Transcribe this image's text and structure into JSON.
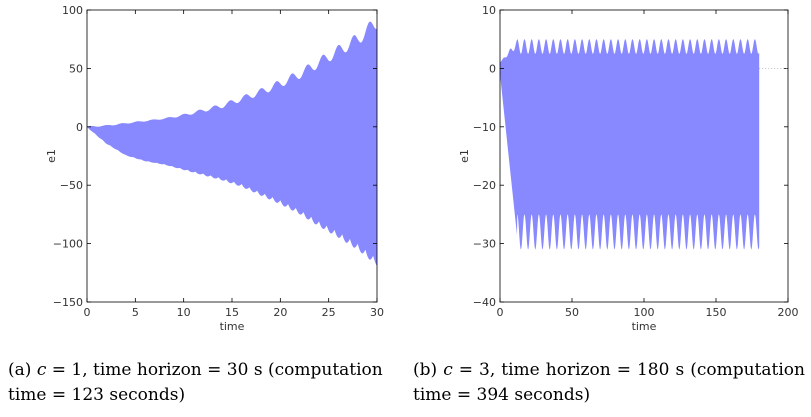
{
  "captions": {
    "a": {
      "prefix": "(a) ",
      "var": "c",
      "rest": " = 1, time horizon = 30 s (computation time = 123 seconds)"
    },
    "b": {
      "prefix": "(b) ",
      "var": "c",
      "rest": " = 3, time horizon = 180 s (computation time = 394 seconds)"
    }
  },
  "chart_data": [
    {
      "type": "area",
      "xlabel": "time",
      "ylabel": "e1",
      "xlim": [
        0,
        30
      ],
      "ylim": [
        -150,
        100
      ],
      "xticks": [
        0,
        5,
        10,
        15,
        20,
        25,
        30
      ],
      "yticks": [
        -150,
        -100,
        -50,
        0,
        50,
        100
      ],
      "grid": false,
      "fill_color": "#8888ff",
      "series": [
        {
          "x": [
            0,
            2,
            4,
            6,
            8,
            10,
            12,
            14,
            16,
            18,
            20,
            22,
            24,
            26,
            28,
            30
          ],
          "upper": [
            0,
            1,
            3,
            5,
            7,
            10,
            14,
            18,
            24,
            30,
            37,
            45,
            55,
            65,
            75,
            90
          ],
          "lower": [
            0,
            -14,
            -24,
            -29,
            -32,
            -36,
            -40,
            -44,
            -49,
            -56,
            -63,
            -71,
            -81,
            -90,
            -100,
            -113
          ]
        }
      ]
    },
    {
      "type": "area",
      "xlabel": "time",
      "ylabel": "e1",
      "xlim": [
        0,
        200
      ],
      "ylim": [
        -40,
        10
      ],
      "xticks": [
        0,
        50,
        100,
        150,
        200
      ],
      "yticks": [
        -40,
        -30,
        -20,
        -10,
        0,
        10
      ],
      "grid": false,
      "fill_color": "#8888ff",
      "series": [
        {
          "x_end": 180,
          "upper_steady": 5,
          "upper_trough": 2.5,
          "lower_peak_min": -31,
          "lower_trough": -25,
          "oscillation_period": 5
        }
      ]
    }
  ]
}
